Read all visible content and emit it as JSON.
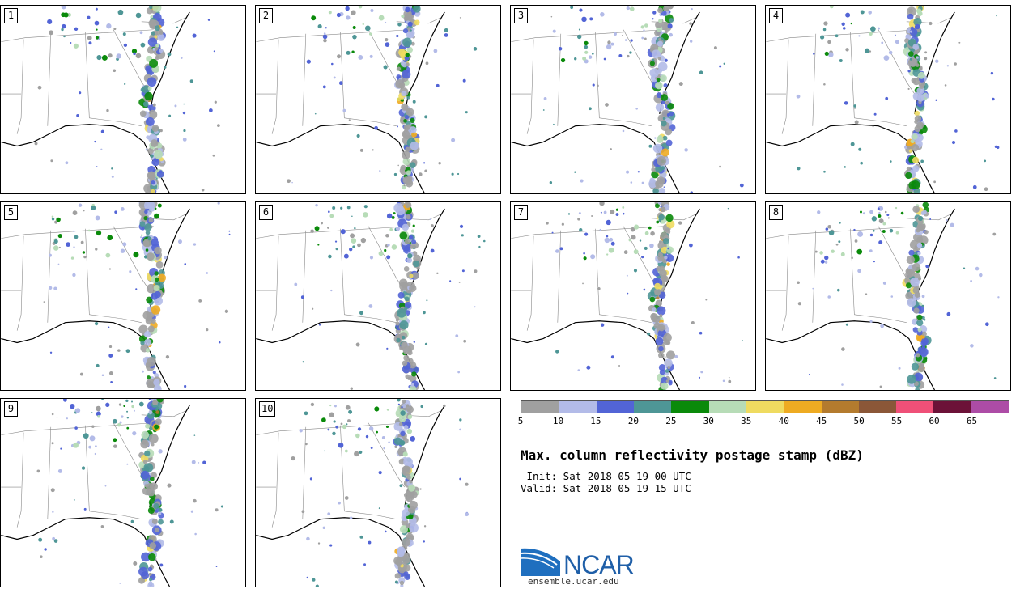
{
  "panels": [
    {
      "label": "1"
    },
    {
      "label": "2"
    },
    {
      "label": "3"
    },
    {
      "label": "4"
    },
    {
      "label": "5"
    },
    {
      "label": "6"
    },
    {
      "label": "7"
    },
    {
      "label": "8"
    },
    {
      "label": "9"
    },
    {
      "label": "10"
    }
  ],
  "colorbar": {
    "colors": [
      "#a0a0a0",
      "#b3bbe8",
      "#5264d6",
      "#4e9696",
      "#0a8a0a",
      "#b7dcb7",
      "#efdb60",
      "#eeab22",
      "#b47b2e",
      "#8b5738",
      "#ef5078",
      "#6c1238",
      "#ad4ca6"
    ],
    "ticks": [
      "5",
      "10",
      "15",
      "20",
      "25",
      "30",
      "35",
      "40",
      "45",
      "50",
      "55",
      "60",
      "65"
    ]
  },
  "title": "Max. column reflectivity postage stamp (dBZ)",
  "init": " Init: Sat 2018-05-19 00 UTC",
  "valid": "Valid: Sat 2018-05-19 15 UTC",
  "logo": {
    "text": "NCAR",
    "site": "ensemble.ucar.edu"
  }
}
